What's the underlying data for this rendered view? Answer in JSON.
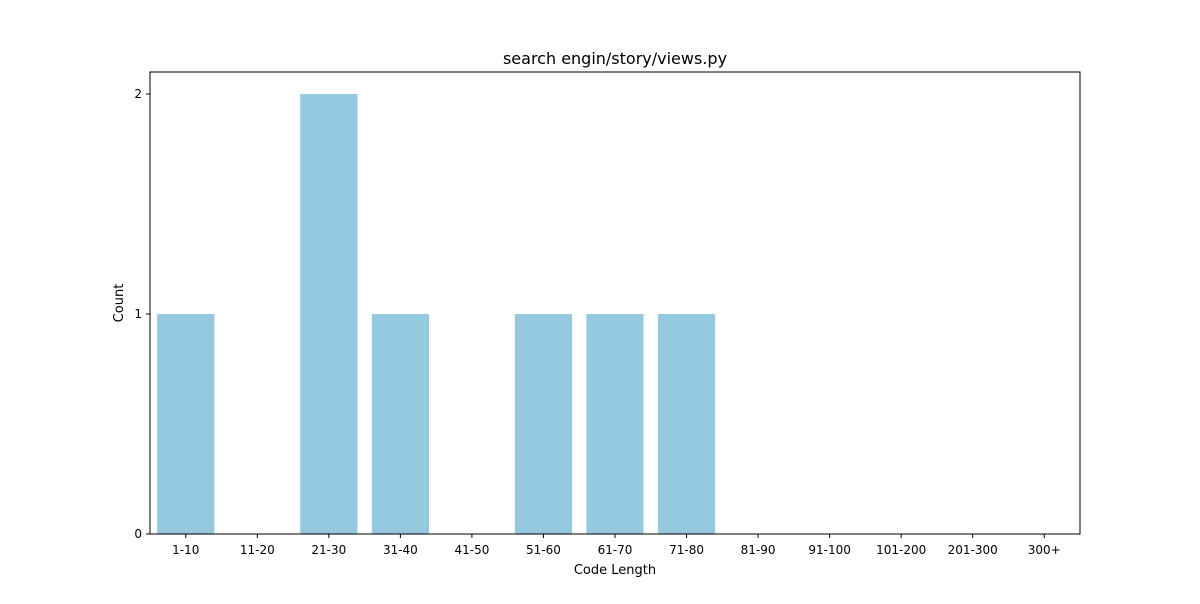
{
  "chart_data": {
    "type": "bar",
    "title": "search engin/story/views.py",
    "xlabel": "Code Length",
    "ylabel": "Count",
    "categories": [
      "1-10",
      "11-20",
      "21-30",
      "31-40",
      "41-50",
      "51-60",
      "61-70",
      "71-80",
      "81-90",
      "91-100",
      "101-200",
      "201-300",
      "300+"
    ],
    "values": [
      1,
      0,
      2,
      1,
      0,
      1,
      1,
      1,
      0,
      0,
      0,
      0,
      0
    ],
    "ylim": [
      0,
      2.1
    ],
    "yticks": [
      0,
      1,
      2
    ],
    "grid": false,
    "legend": "none",
    "bar_color": "#95c9df"
  }
}
